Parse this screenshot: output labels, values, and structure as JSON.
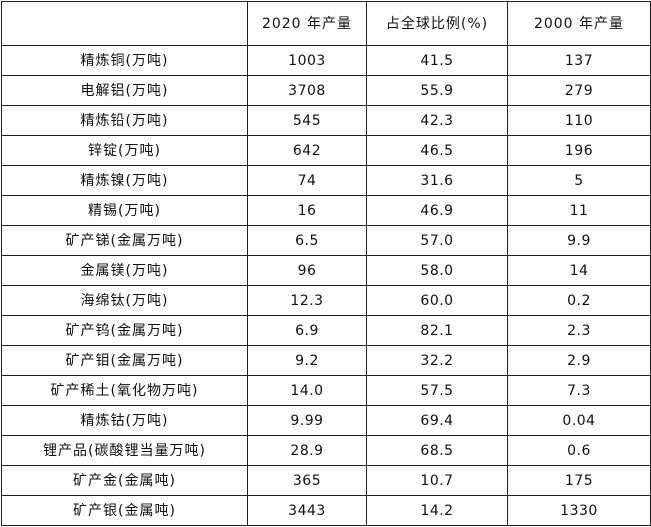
{
  "table": {
    "headers": [
      "",
      "2020 年产量",
      "占全球比例(%)",
      "2000 年产量"
    ],
    "rows": [
      {
        "name": "精炼铜(万吨)",
        "prod2020": "1003",
        "share": "41.5",
        "prod2000": "137"
      },
      {
        "name": "电解铝(万吨)",
        "prod2020": "3708",
        "share": "55.9",
        "prod2000": "279"
      },
      {
        "name": "精炼铅(万吨)",
        "prod2020": "545",
        "share": "42.3",
        "prod2000": "110"
      },
      {
        "name": "锌锭(万吨)",
        "prod2020": "642",
        "share": "46.5",
        "prod2000": "196"
      },
      {
        "name": "精炼镍(万吨)",
        "prod2020": "74",
        "share": "31.6",
        "prod2000": "5"
      },
      {
        "name": "精锡(万吨)",
        "prod2020": "16",
        "share": "46.9",
        "prod2000": "11"
      },
      {
        "name": "矿产锑(金属万吨)",
        "prod2020": "6.5",
        "share": "57.0",
        "prod2000": "9.9"
      },
      {
        "name": "金属镁(万吨)",
        "prod2020": "96",
        "share": "58.0",
        "prod2000": "14"
      },
      {
        "name": "海绵钛(万吨)",
        "prod2020": "12.3",
        "share": "60.0",
        "prod2000": "0.2"
      },
      {
        "name": "矿产钨(金属万吨)",
        "prod2020": "6.9",
        "share": "82.1",
        "prod2000": "2.3"
      },
      {
        "name": "矿产钼(金属万吨)",
        "prod2020": "9.2",
        "share": "32.2",
        "prod2000": "2.9"
      },
      {
        "name": "矿产稀土(氧化物万吨)",
        "prod2020": "14.0",
        "share": "57.5",
        "prod2000": "7.3"
      },
      {
        "name": "精炼钴(万吨)",
        "prod2020": "9.99",
        "share": "69.4",
        "prod2000": "0.04"
      },
      {
        "name": "锂产品(碳酸锂当量万吨)",
        "prod2020": "28.9",
        "share": "68.5",
        "prod2000": "0.6"
      },
      {
        "name": "矿产金(金属吨)",
        "prod2020": "365",
        "share": "10.7",
        "prod2000": "175"
      },
      {
        "name": "矿产银(金属吨)",
        "prod2020": "3443",
        "share": "14.2",
        "prod2000": "1330"
      }
    ]
  },
  "colors": {
    "border": "#222222",
    "text": "#111111",
    "background": "#ffffff"
  }
}
